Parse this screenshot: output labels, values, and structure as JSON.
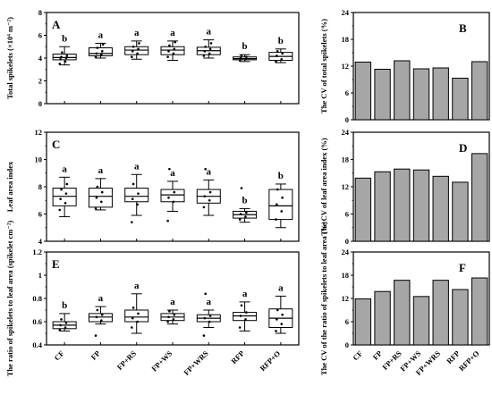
{
  "categories": [
    "CF",
    "FP",
    "FP+RS",
    "FP+WS",
    "FP+WRS",
    "RFP",
    "RFP+O"
  ],
  "colors": {
    "box": "#000000",
    "bar_fill": "#a6a6a6",
    "bar_stroke": "#000000"
  },
  "chart_data": [
    {
      "panel": "A",
      "type": "box",
      "ylabel": "Total spikelets (×10⁴ m⁻²)",
      "ylim": [
        0,
        8
      ],
      "yticks": [
        0,
        2,
        4,
        6,
        8
      ],
      "boxes": [
        {
          "min": 3.4,
          "q1": 3.85,
          "median": 4.05,
          "q3": 4.35,
          "max": 5.0,
          "points": [
            3.5,
            3.7,
            3.9,
            4.0,
            4.1,
            4.2,
            4.5
          ]
        },
        {
          "min": 4.0,
          "q1": 4.2,
          "median": 4.4,
          "q3": 4.9,
          "max": 5.3,
          "points": [
            4.1,
            4.3,
            4.4,
            4.6,
            4.9,
            5.2
          ]
        },
        {
          "min": 3.9,
          "q1": 4.3,
          "median": 4.7,
          "q3": 5.0,
          "max": 5.5,
          "points": [
            4.1,
            4.4,
            4.6,
            4.8,
            5.0,
            5.3
          ]
        },
        {
          "min": 3.8,
          "q1": 4.3,
          "median": 4.7,
          "q3": 5.0,
          "max": 5.5,
          "points": [
            4.1,
            4.4,
            4.6,
            4.8,
            5.1,
            5.4
          ]
        },
        {
          "min": 4.0,
          "q1": 4.3,
          "median": 4.65,
          "q3": 4.95,
          "max": 5.6,
          "points": [
            4.2,
            4.4,
            4.6,
            4.8,
            5.0,
            5.3
          ]
        },
        {
          "min": 3.7,
          "q1": 3.85,
          "median": 3.95,
          "q3": 4.1,
          "max": 4.3,
          "points": [
            3.8,
            3.9,
            4.0,
            4.1,
            4.2
          ]
        },
        {
          "min": 3.6,
          "q1": 3.8,
          "median": 4.15,
          "q3": 4.5,
          "max": 4.8,
          "points": [
            3.7,
            3.9,
            4.2,
            4.4,
            4.6
          ]
        }
      ],
      "letters": [
        "b",
        "a",
        "a",
        "a",
        "a",
        "b",
        "b"
      ]
    },
    {
      "panel": "B",
      "type": "bar",
      "ylabel": "The CV of total spikelets (%)",
      "ylim": [
        0,
        24
      ],
      "yticks": [
        0,
        6,
        12,
        18,
        24
      ],
      "values": [
        12.9,
        11.3,
        13.2,
        11.4,
        11.6,
        9.3,
        13.0
      ]
    },
    {
      "panel": "C",
      "type": "box",
      "ylabel": "Leaf area index",
      "ylim": [
        4,
        12
      ],
      "yticks": [
        4,
        6,
        8,
        10,
        12
      ],
      "boxes": [
        {
          "min": 5.8,
          "q1": 6.6,
          "median": 7.3,
          "q3": 7.9,
          "max": 8.7,
          "points": [
            6.3,
            6.8,
            7.1,
            7.5,
            7.8,
            8.2
          ]
        },
        {
          "min": 6.3,
          "q1": 6.5,
          "median": 7.3,
          "q3": 7.9,
          "max": 8.6,
          "points": [
            6.4,
            6.9,
            7.2,
            7.6,
            8.0
          ]
        },
        {
          "min": 5.9,
          "q1": 6.9,
          "median": 7.3,
          "q3": 7.9,
          "max": 8.9,
          "points": [
            5.4,
            6.7,
            7.1,
            7.5,
            8.2
          ]
        },
        {
          "min": 6.2,
          "q1": 6.9,
          "median": 7.4,
          "q3": 7.8,
          "max": 8.4,
          "points": [
            5.5,
            6.9,
            7.2,
            7.6,
            9.3
          ]
        },
        {
          "min": 5.9,
          "q1": 6.8,
          "median": 7.3,
          "q3": 7.8,
          "max": 8.5,
          "points": [
            6.5,
            7.0,
            7.3,
            7.6,
            9.3
          ]
        },
        {
          "min": 5.4,
          "q1": 5.7,
          "median": 5.95,
          "q3": 6.2,
          "max": 6.4,
          "points": [
            5.6,
            5.8,
            6.0,
            6.1,
            7.9
          ]
        },
        {
          "min": 5.0,
          "q1": 5.6,
          "median": 6.6,
          "q3": 7.8,
          "max": 8.2,
          "points": [
            5.6,
            6.2,
            6.7,
            7.2,
            7.8
          ]
        }
      ],
      "letters": [
        "a",
        "a",
        "a",
        "a",
        "a",
        "b",
        "b"
      ]
    },
    {
      "panel": "D",
      "type": "bar",
      "ylabel": "The CV of leaf area index (%)",
      "ylim": [
        0,
        24
      ],
      "yticks": [
        0,
        6,
        12,
        18,
        24
      ],
      "values": [
        13.9,
        15.3,
        15.9,
        15.7,
        14.3,
        13.0,
        19.3
      ]
    },
    {
      "panel": "E",
      "type": "box",
      "ylabel": "The ratio of spikelets to leaf area (spikelet cm⁻²)",
      "ylim": [
        0.4,
        1.2
      ],
      "yticks": [
        0.4,
        0.6,
        0.8,
        1.0,
        1.2
      ],
      "boxes": [
        {
          "min": 0.52,
          "q1": 0.54,
          "median": 0.57,
          "q3": 0.6,
          "max": 0.67,
          "points": [
            0.53,
            0.55,
            0.57,
            0.59,
            0.62
          ]
        },
        {
          "min": 0.58,
          "q1": 0.6,
          "median": 0.64,
          "q3": 0.67,
          "max": 0.73,
          "points": [
            0.48,
            0.61,
            0.64,
            0.66,
            0.7
          ]
        },
        {
          "min": 0.5,
          "q1": 0.6,
          "median": 0.64,
          "q3": 0.7,
          "max": 0.84,
          "points": [
            0.55,
            0.6,
            0.63,
            0.67,
            0.72
          ]
        },
        {
          "min": 0.58,
          "q1": 0.61,
          "median": 0.64,
          "q3": 0.67,
          "max": 0.7,
          "points": [
            0.6,
            0.62,
            0.64,
            0.66,
            0.69
          ]
        },
        {
          "min": 0.55,
          "q1": 0.6,
          "median": 0.63,
          "q3": 0.66,
          "max": 0.7,
          "points": [
            0.48,
            0.6,
            0.63,
            0.65,
            0.84
          ]
        },
        {
          "min": 0.52,
          "q1": 0.61,
          "median": 0.65,
          "q3": 0.68,
          "max": 0.77,
          "points": [
            0.55,
            0.62,
            0.65,
            0.68,
            0.74
          ]
        },
        {
          "min": 0.5,
          "q1": 0.55,
          "median": 0.63,
          "q3": 0.71,
          "max": 0.82,
          "points": [
            0.52,
            0.58,
            0.62,
            0.66,
            0.7
          ]
        }
      ],
      "letters": [
        "b",
        "a",
        "a",
        "a",
        "a",
        "a",
        "a"
      ]
    },
    {
      "panel": "F",
      "type": "bar",
      "ylabel": "The CV of the ratio of spikelets to leaf area (%)",
      "ylim": [
        0,
        24
      ],
      "yticks": [
        0,
        6,
        12,
        18,
        24
      ],
      "values": [
        11.9,
        13.8,
        16.7,
        12.5,
        16.7,
        14.3,
        17.3
      ]
    }
  ]
}
